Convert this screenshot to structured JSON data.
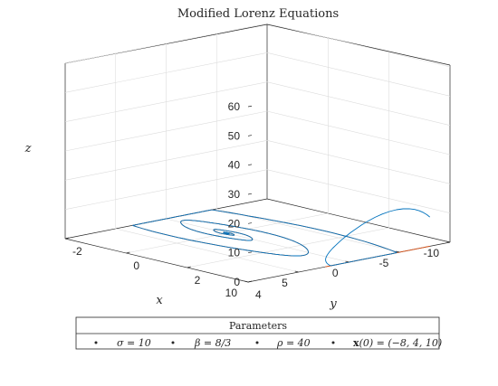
{
  "chart_data": {
    "type": "line3d",
    "title": "Modified Lorenz Equations",
    "xlabel": "x",
    "ylabel": "y",
    "zlabel": "z",
    "xlim": [
      -10,
      10
    ],
    "ylim": [
      -2,
      4
    ],
    "zlim": [
      0,
      60
    ],
    "x_ticks": [
      "10",
      "5",
      "0",
      "-5",
      "-10"
    ],
    "y_ticks": [
      "-2",
      "0",
      "2",
      "4"
    ],
    "z_ticks": [
      "0",
      "10",
      "20",
      "30",
      "40",
      "50",
      "60"
    ],
    "grid": true,
    "box": true,
    "series": [
      {
        "role": "trajectory",
        "color": "#0072BD"
      },
      {
        "role": "projection-z0",
        "color": "#D95319"
      }
    ],
    "legend": {
      "title": "Parameters",
      "position": "bottom",
      "items": [
        {
          "text": "σ = 10"
        },
        {
          "text": "β = 8/3"
        },
        {
          "text": "ρ = 40"
        },
        {
          "bold_prefix": "x",
          "text": "(0) = (−8, 4, 10)"
        }
      ]
    }
  }
}
